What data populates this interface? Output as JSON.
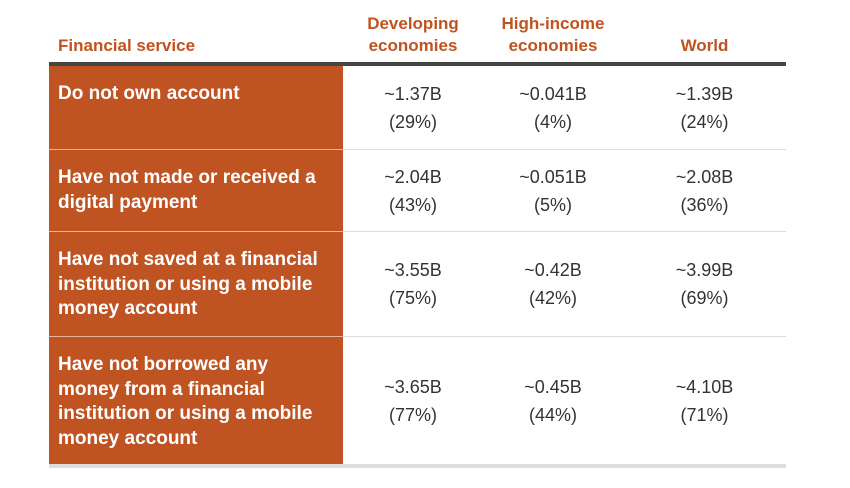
{
  "table": {
    "headers": {
      "service": "Financial service",
      "developing": [
        "Developing",
        "economies"
      ],
      "high_income": [
        "High-income",
        "economies"
      ],
      "world": "World"
    },
    "rows": [
      {
        "label": "Do not own account",
        "developing": {
          "value": "~1.37B",
          "pct": "(29%)"
        },
        "high_income": {
          "value": "~0.041B",
          "pct": "(4%)"
        },
        "world": {
          "value": "~1.39B",
          "pct": "(24%)"
        }
      },
      {
        "label": "Have not made or received a digital payment",
        "developing": {
          "value": "~2.04B",
          "pct": "(43%)"
        },
        "high_income": {
          "value": "~0.051B",
          "pct": "(5%)"
        },
        "world": {
          "value": "~2.08B",
          "pct": "(36%)"
        }
      },
      {
        "label": "Have not saved at a financial institution or using a mobile money account",
        "developing": {
          "value": "~3.55B",
          "pct": "(75%)"
        },
        "high_income": {
          "value": "~0.42B",
          "pct": "(42%)"
        },
        "world": {
          "value": "~3.99B",
          "pct": "(69%)"
        }
      },
      {
        "label": "Have not borrowed any money from a financial institution or using a mobile money account",
        "developing": {
          "value": "~3.65B",
          "pct": "(77%)"
        },
        "high_income": {
          "value": "~0.45B",
          "pct": "(44%)"
        },
        "world": {
          "value": "~4.10B",
          "pct": "(71%)"
        }
      }
    ]
  },
  "colors": {
    "accent": "#bf5322",
    "header_text": "#c0531f",
    "rule": "#444444"
  }
}
